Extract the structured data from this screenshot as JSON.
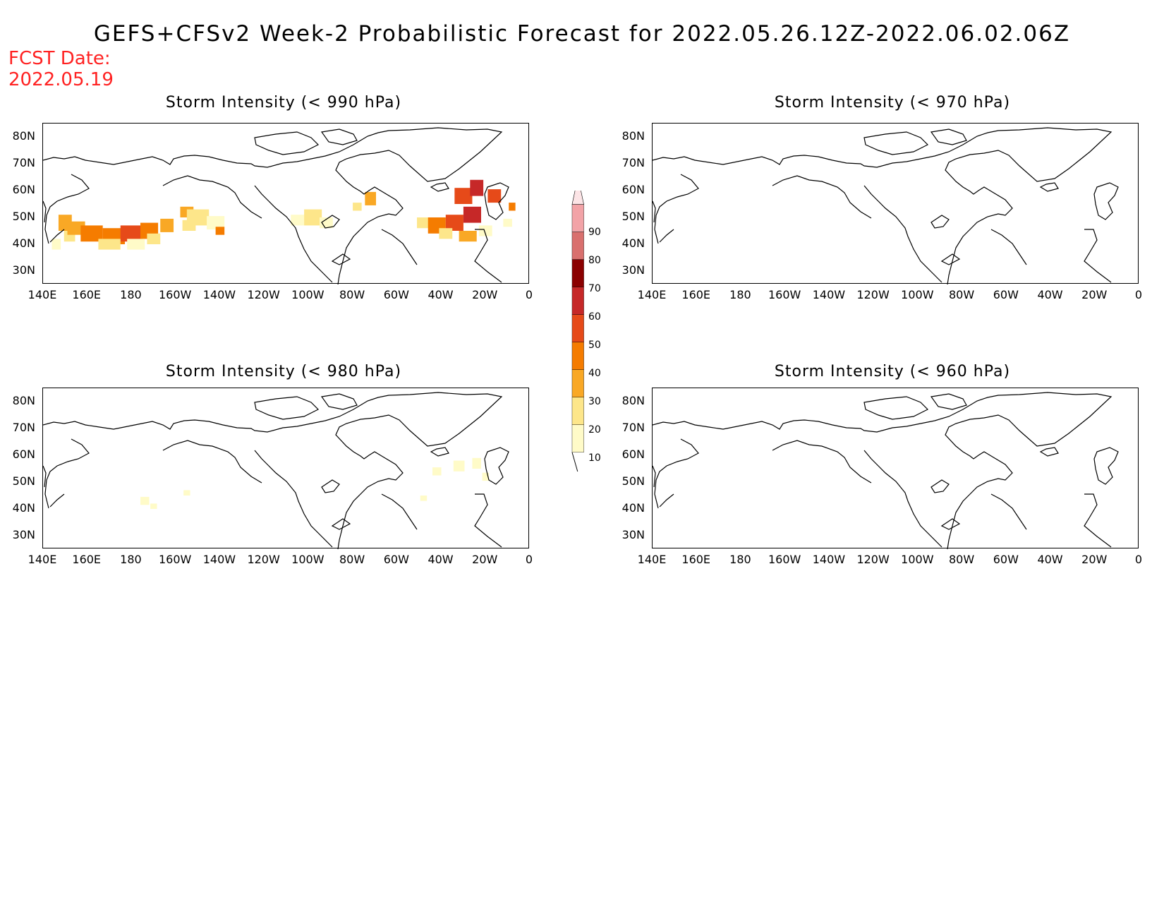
{
  "title": "GEFS+CFSv2 Week-2 Probabilistic Forecast for 2022.05.26.12Z-2022.06.02.06Z",
  "fcst_date_label": "FCST Date:",
  "fcst_date_value": "2022.05.19",
  "lat_labels": [
    "80N",
    "70N",
    "60N",
    "50N",
    "40N",
    "30N"
  ],
  "lon_labels": [
    "140E",
    "160E",
    "180",
    "160W",
    "140W",
    "120W",
    "100W",
    "80W",
    "60W",
    "40W",
    "20W",
    "0"
  ],
  "panels": [
    {
      "title": "Storm Intensity (< 990 hPa)"
    },
    {
      "title": "Storm Intensity (< 970 hPa)"
    },
    {
      "title": "Storm Intensity (< 980 hPa)"
    },
    {
      "title": "Storm Intensity (< 960 hPa)"
    }
  ],
  "colorbar": {
    "levels": [
      "10",
      "20",
      "30",
      "40",
      "50",
      "60",
      "70",
      "80",
      "90"
    ],
    "colors": [
      "#fffbc8",
      "#fde68a",
      "#f9a825",
      "#f57c00",
      "#e64a19",
      "#c62828",
      "#8b0000",
      "#d9706e",
      "#f2a3a7",
      "#fce4e6"
    ]
  }
}
